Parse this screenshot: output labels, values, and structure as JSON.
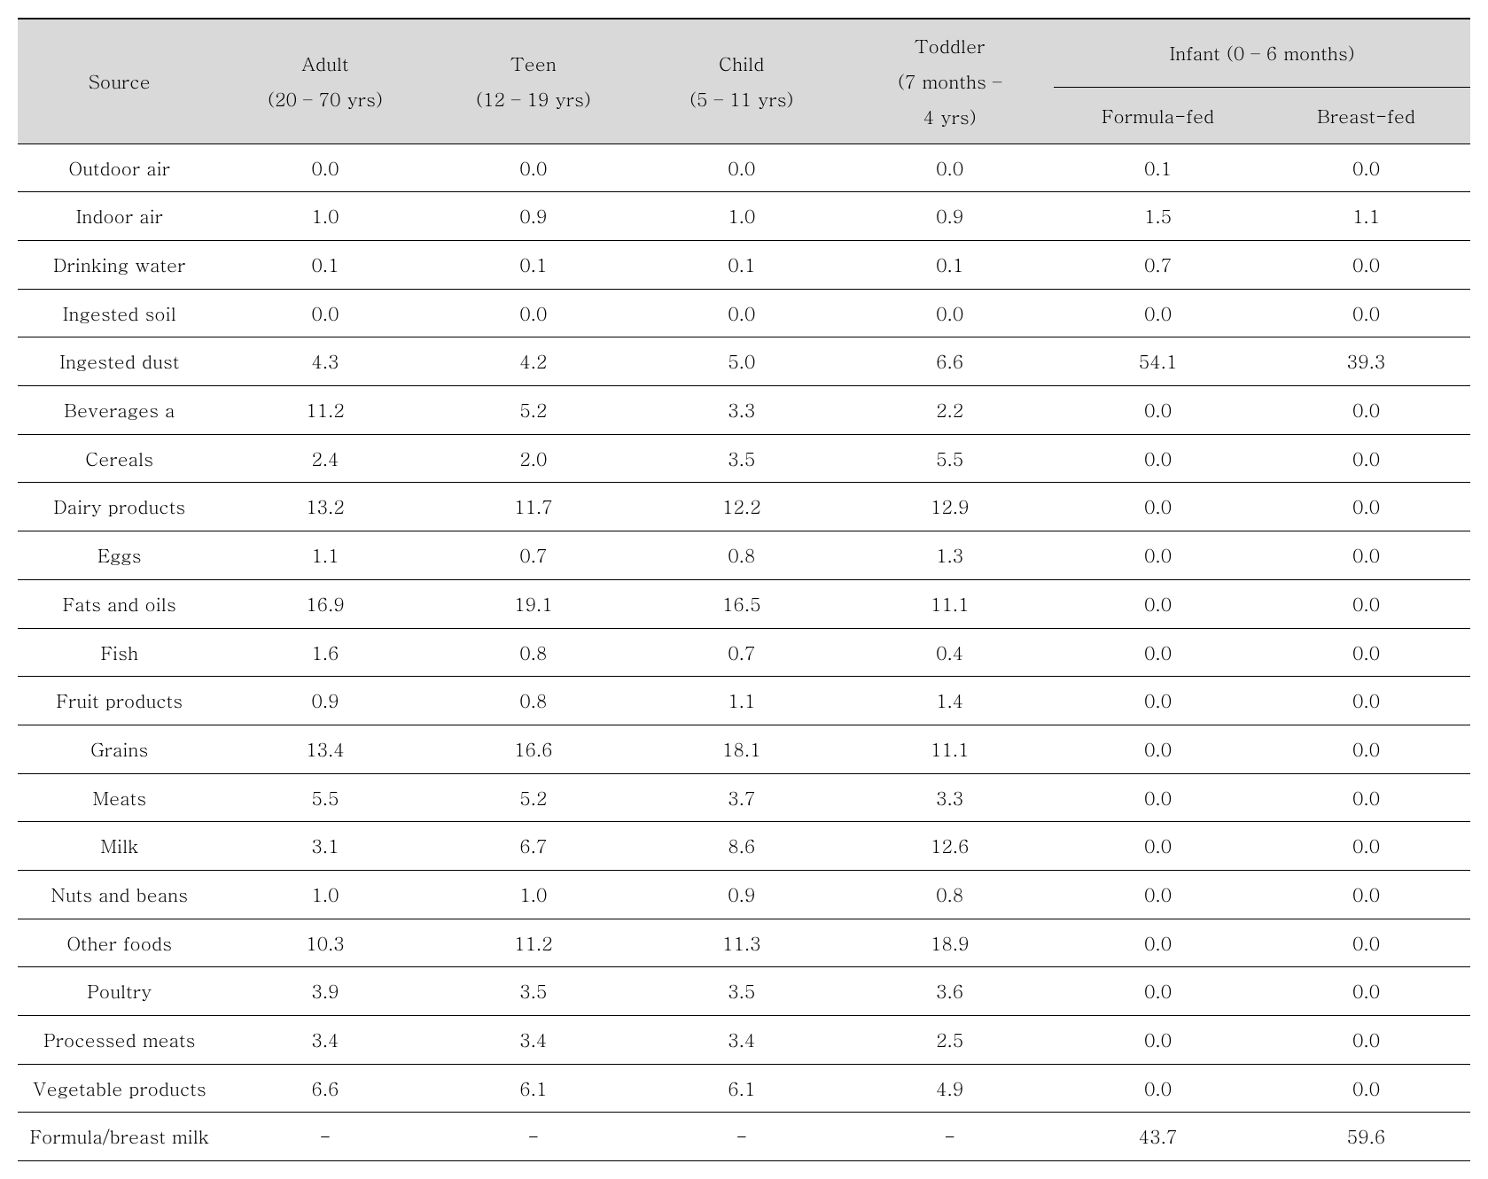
{
  "table": {
    "type": "table",
    "background_color": "#ffffff",
    "header_background": "#d9d9d9",
    "border_color": "#000000",
    "font_family": "Batang, serif",
    "font_size_pt": 16,
    "text_color": "#000000",
    "columns": {
      "source": {
        "label": "Source",
        "width_pct": 14,
        "align": "center"
      },
      "adult": {
        "line1": "Adult",
        "line2": "(20 – 70 yrs)",
        "width_pct": 14.33,
        "align": "center"
      },
      "teen": {
        "line1": "Teen",
        "line2": "(12 – 19 yrs)",
        "width_pct": 14.33,
        "align": "center"
      },
      "child": {
        "line1": "Child",
        "line2": "(5 – 11 yrs)",
        "width_pct": 14.33,
        "align": "center"
      },
      "toddler": {
        "line1": "Toddler",
        "line2": "(7 months –",
        "line3": "4 yrs)",
        "width_pct": 14.33,
        "align": "center"
      },
      "infant_group": {
        "label": "Infant (0 – 6 months)"
      },
      "formula": {
        "label": "Formula-fed",
        "width_pct": 14.33,
        "align": "center"
      },
      "breast": {
        "label": "Breast-fed",
        "width_pct": 14.33,
        "align": "center"
      }
    },
    "rows": [
      {
        "source": "Outdoor air",
        "adult": "0.0",
        "teen": "0.0",
        "child": "0.0",
        "toddler": "0.0",
        "formula": "0.1",
        "breast": "0.0"
      },
      {
        "source": "Indoor air",
        "adult": "1.0",
        "teen": "0.9",
        "child": "1.0",
        "toddler": "0.9",
        "formula": "1.5",
        "breast": "1.1"
      },
      {
        "source": "Drinking water",
        "adult": "0.1",
        "teen": "0.1",
        "child": "0.1",
        "toddler": "0.1",
        "formula": "0.7",
        "breast": "0.0"
      },
      {
        "source": "Ingested soil",
        "adult": "0.0",
        "teen": "0.0",
        "child": "0.0",
        "toddler": "0.0",
        "formula": "0.0",
        "breast": "0.0"
      },
      {
        "source": "Ingested dust",
        "adult": "4.3",
        "teen": "4.2",
        "child": "5.0",
        "toddler": "6.6",
        "formula": "54.1",
        "breast": "39.3"
      },
      {
        "source": "Beverages a",
        "adult": "11.2",
        "teen": "5.2",
        "child": "3.3",
        "toddler": "2.2",
        "formula": "0.0",
        "breast": "0.0"
      },
      {
        "source": "Cereals",
        "adult": "2.4",
        "teen": "2.0",
        "child": "3.5",
        "toddler": "5.5",
        "formula": "0.0",
        "breast": "0.0"
      },
      {
        "source": "Dairy products",
        "adult": "13.2",
        "teen": "11.7",
        "child": "12.2",
        "toddler": "12.9",
        "formula": "0.0",
        "breast": "0.0"
      },
      {
        "source": "Eggs",
        "adult": "1.1",
        "teen": "0.7",
        "child": "0.8",
        "toddler": "1.3",
        "formula": "0.0",
        "breast": "0.0"
      },
      {
        "source": "Fats and oils",
        "adult": "16.9",
        "teen": "19.1",
        "child": "16.5",
        "toddler": "11.1",
        "formula": "0.0",
        "breast": "0.0"
      },
      {
        "source": "Fish",
        "adult": "1.6",
        "teen": "0.8",
        "child": "0.7",
        "toddler": "0.4",
        "formula": "0.0",
        "breast": "0.0"
      },
      {
        "source": "Fruit products",
        "adult": "0.9",
        "teen": "0.8",
        "child": "1.1",
        "toddler": "1.4",
        "formula": "0.0",
        "breast": "0.0"
      },
      {
        "source": "Grains",
        "adult": "13.4",
        "teen": "16.6",
        "child": "18.1",
        "toddler": "11.1",
        "formula": "0.0",
        "breast": "0.0"
      },
      {
        "source": "Meats",
        "adult": "5.5",
        "teen": "5.2",
        "child": "3.7",
        "toddler": "3.3",
        "formula": "0.0",
        "breast": "0.0"
      },
      {
        "source": "Milk",
        "adult": "3.1",
        "teen": "6.7",
        "child": "8.6",
        "toddler": "12.6",
        "formula": "0.0",
        "breast": "0.0"
      },
      {
        "source": "Nuts and beans",
        "adult": "1.0",
        "teen": "1.0",
        "child": "0.9",
        "toddler": "0.8",
        "formula": "0.0",
        "breast": "0.0"
      },
      {
        "source": "Other foods",
        "adult": "10.3",
        "teen": "11.2",
        "child": "11.3",
        "toddler": "18.9",
        "formula": "0.0",
        "breast": "0.0"
      },
      {
        "source": "Poultry",
        "adult": "3.9",
        "teen": "3.5",
        "child": "3.5",
        "toddler": "3.6",
        "formula": "0.0",
        "breast": "0.0"
      },
      {
        "source": "Processed meats",
        "adult": "3.4",
        "teen": "3.4",
        "child": "3.4",
        "toddler": "2.5",
        "formula": "0.0",
        "breast": "0.0"
      },
      {
        "source": "Vegetable products",
        "adult": "6.6",
        "teen": "6.1",
        "child": "6.1",
        "toddler": "4.9",
        "formula": "0.0",
        "breast": "0.0"
      },
      {
        "source": "Formula/breast milk",
        "adult": "-",
        "teen": "-",
        "child": "-",
        "toddler": "-",
        "formula": "43.7",
        "breast": "59.6"
      }
    ]
  }
}
